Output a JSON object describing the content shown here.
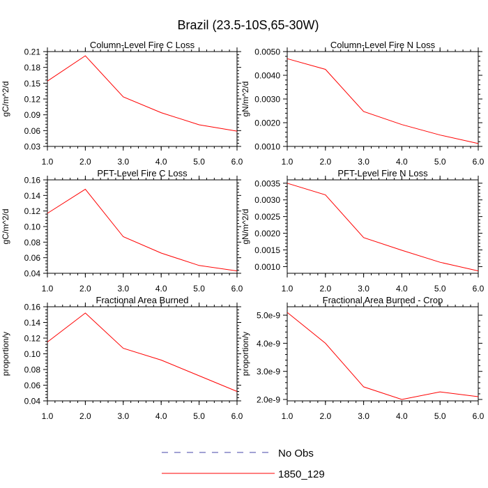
{
  "title": "Brazil (23.5-10S,65-30W)",
  "legend": {
    "items": [
      {
        "label": "No Obs",
        "color": "#4444aa",
        "style": "dashed"
      },
      {
        "label": "1850_129",
        "color": "#ff0000",
        "style": "solid"
      }
    ]
  },
  "chart_data": [
    {
      "type": "line",
      "title": "Column-Level Fire C Loss",
      "ylabel": "gC/m^2/d",
      "xlabel": "",
      "xlim": [
        1.0,
        6.0
      ],
      "ylim": [
        0.03,
        0.21
      ],
      "xticks": [
        1.0,
        2.0,
        3.0,
        4.0,
        5.0,
        6.0
      ],
      "xtick_labels": [
        "1.0",
        "2.0",
        "3.0",
        "4.0",
        "5.0",
        "6.0"
      ],
      "yticks": [
        0.03,
        0.06,
        0.09,
        0.12,
        0.15,
        0.18,
        0.21
      ],
      "ytick_labels": [
        "0.03",
        "0.06",
        "0.09",
        "0.12",
        "0.15",
        "0.18",
        "0.21"
      ],
      "series": [
        {
          "name": "1850_129",
          "color": "#ff0000",
          "x": [
            1,
            2,
            3,
            4,
            5,
            6
          ],
          "values": [
            0.154,
            0.202,
            0.124,
            0.094,
            0.071,
            0.059
          ]
        }
      ]
    },
    {
      "type": "line",
      "title": "Column-Level Fire N Loss",
      "ylabel": "gN/m^2/d",
      "xlabel": "",
      "xlim": [
        1.0,
        6.0
      ],
      "ylim": [
        0.001,
        0.005
      ],
      "xticks": [
        1.0,
        2.0,
        3.0,
        4.0,
        5.0,
        6.0
      ],
      "xtick_labels": [
        "1.0",
        "2.0",
        "3.0",
        "4.0",
        "5.0",
        "6.0"
      ],
      "yticks": [
        0.001,
        0.002,
        0.003,
        0.004,
        0.005
      ],
      "ytick_labels": [
        "0.0010",
        "0.0020",
        "0.0030",
        "0.0040",
        "0.0050"
      ],
      "series": [
        {
          "name": "1850_129",
          "color": "#ff0000",
          "x": [
            1,
            2,
            3,
            4,
            5,
            6
          ],
          "values": [
            0.0047,
            0.00425,
            0.00247,
            0.00192,
            0.00148,
            0.00112
          ]
        }
      ]
    },
    {
      "type": "line",
      "title": "PFT-Level Fire C Loss",
      "ylabel": "gC/m^2/d",
      "xlabel": "",
      "xlim": [
        1.0,
        6.0
      ],
      "ylim": [
        0.04,
        0.16
      ],
      "xticks": [
        1.0,
        2.0,
        3.0,
        4.0,
        5.0,
        6.0
      ],
      "xtick_labels": [
        "1.0",
        "2.0",
        "3.0",
        "4.0",
        "5.0",
        "6.0"
      ],
      "yticks": [
        0.04,
        0.06,
        0.08,
        0.1,
        0.12,
        0.14,
        0.16
      ],
      "ytick_labels": [
        "0.04",
        "0.06",
        "0.08",
        "0.10",
        "0.12",
        "0.14",
        "0.16"
      ],
      "series": [
        {
          "name": "1850_129",
          "color": "#ff0000",
          "x": [
            1,
            2,
            3,
            4,
            5,
            6
          ],
          "values": [
            0.117,
            0.148,
            0.087,
            0.066,
            0.05,
            0.043
          ]
        }
      ]
    },
    {
      "type": "line",
      "title": "PFT-Level Fire N Loss",
      "ylabel": "gN/m^2/d",
      "xlabel": "",
      "xlim": [
        1.0,
        6.0
      ],
      "ylim": [
        0.0008,
        0.0036
      ],
      "xticks": [
        1.0,
        2.0,
        3.0,
        4.0,
        5.0,
        6.0
      ],
      "xtick_labels": [
        "1.0",
        "2.0",
        "3.0",
        "4.0",
        "5.0",
        "6.0"
      ],
      "yticks": [
        0.001,
        0.0015,
        0.002,
        0.0025,
        0.003,
        0.0035
      ],
      "ytick_labels": [
        "0.0010",
        "0.0015",
        "0.0020",
        "0.0025",
        "0.0030",
        "0.0035"
      ],
      "series": [
        {
          "name": "1850_129",
          "color": "#ff0000",
          "x": [
            1,
            2,
            3,
            4,
            5,
            6
          ],
          "values": [
            0.0035,
            0.00315,
            0.00187,
            0.00149,
            0.00113,
            0.00087
          ]
        }
      ]
    },
    {
      "type": "line",
      "title": "Fractional Area Burned",
      "ylabel": "proportion/y",
      "xlabel": "",
      "xlim": [
        1.0,
        6.0
      ],
      "ylim": [
        0.04,
        0.16
      ],
      "xticks": [
        1.0,
        2.0,
        3.0,
        4.0,
        5.0,
        6.0
      ],
      "xtick_labels": [
        "1.0",
        "2.0",
        "3.0",
        "4.0",
        "5.0",
        "6.0"
      ],
      "yticks": [
        0.04,
        0.06,
        0.08,
        0.1,
        0.12,
        0.14,
        0.16
      ],
      "ytick_labels": [
        "0.04",
        "0.06",
        "0.08",
        "0.10",
        "0.12",
        "0.14",
        "0.16"
      ],
      "series": [
        {
          "name": "1850_129",
          "color": "#ff0000",
          "x": [
            1,
            2,
            3,
            4,
            5,
            6
          ],
          "values": [
            0.115,
            0.152,
            0.107,
            0.092,
            0.072,
            0.052
          ]
        }
      ]
    },
    {
      "type": "line",
      "title": "Fractional Area Burned - Crop",
      "ylabel": "proportion/y",
      "xlabel": "",
      "xlim": [
        1.0,
        6.0
      ],
      "ylim": [
        1.95e-09,
        5.3e-09
      ],
      "xticks": [
        1.0,
        2.0,
        3.0,
        4.0,
        5.0,
        6.0
      ],
      "xtick_labels": [
        "1.0",
        "2.0",
        "3.0",
        "4.0",
        "5.0",
        "6.0"
      ],
      "yticks": [
        2e-09,
        3e-09,
        4e-09,
        5e-09
      ],
      "ytick_labels": [
        "2.0e-9",
        "3.0e-9",
        "4.0e-9",
        "5.0e-9"
      ],
      "series": [
        {
          "name": "1850_129",
          "color": "#ff0000",
          "x": [
            1,
            2,
            3,
            4,
            5,
            6
          ],
          "values": [
            5.1e-09,
            4e-09,
            2.45e-09,
            2e-09,
            2.27e-09,
            2.1e-09
          ]
        }
      ]
    }
  ]
}
